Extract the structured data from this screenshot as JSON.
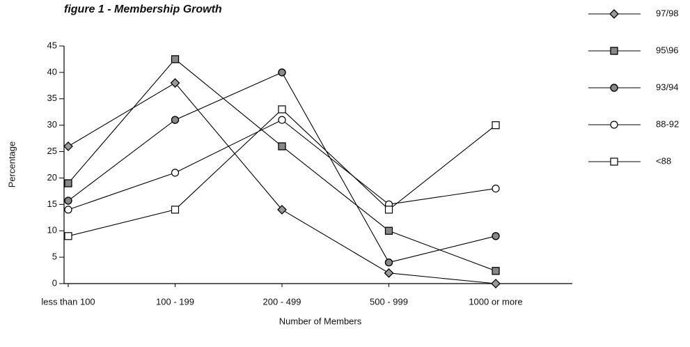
{
  "chart_data": {
    "type": "line",
    "title": "figure 1 - Membership Growth",
    "x_label": "Number of Members",
    "y_label": "Percentage",
    "categories": [
      "less than 100",
      "100 - 199",
      "200 - 499",
      "500 - 999",
      "1000 or more"
    ],
    "series": [
      {
        "name": "97/98",
        "color": "#000000",
        "marker": "diamond",
        "values": [
          26,
          38,
          14,
          2,
          0
        ]
      },
      {
        "name": "95\\96",
        "color": "#000000",
        "marker": "filled-square",
        "values": [
          19,
          42.5,
          26,
          10,
          2.4
        ]
      },
      {
        "name": "93/94",
        "color": "#000000",
        "marker": "dotted-circle",
        "values": [
          15.7,
          31,
          40,
          4,
          9
        ]
      },
      {
        "name": "88-92",
        "color": "#000000",
        "marker": "circle",
        "values": [
          14,
          21,
          31,
          15,
          18
        ]
      },
      {
        "name": "<88",
        "color": "#000000",
        "marker": "square",
        "values": [
          9,
          14,
          33,
          14,
          30
        ]
      }
    ],
    "ylim": [
      0,
      45
    ],
    "yticks": [
      0,
      5,
      10,
      15,
      20,
      25,
      30,
      35,
      40,
      45
    ],
    "legend": "right"
  }
}
